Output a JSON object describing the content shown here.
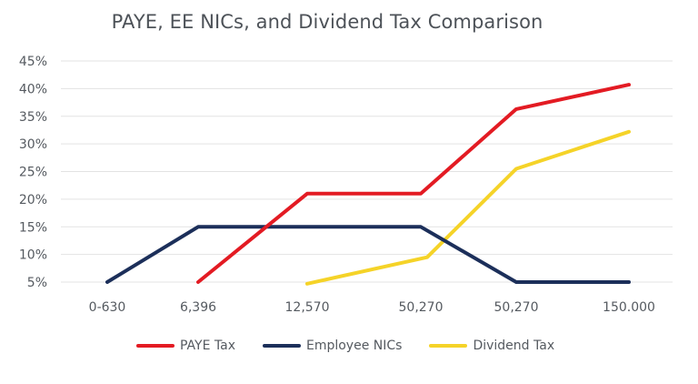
{
  "chart_data": {
    "type": "line",
    "title": "PAYE, EE NICs, and Dividend Tax Comparison",
    "xlabel": "",
    "ylabel": "",
    "categories": [
      "0-630",
      "6,396",
      "12,570",
      "50,270",
      "50,270",
      "150.000"
    ],
    "y_ticks": [
      "5%",
      "10%",
      "15%",
      "20%",
      "25%",
      "30%",
      "35%",
      "40%",
      "45%"
    ],
    "ylim": [
      5,
      45
    ],
    "grid": true,
    "legend_position": "bottom",
    "series": [
      {
        "name": "PAYE Tax",
        "color": "#e31b23",
        "values": [
          null,
          5,
          21,
          21,
          36.3,
          40.7
        ]
      },
      {
        "name": "Employee NICs",
        "color": "#1c2f5a",
        "values": [
          5,
          15,
          15,
          15,
          5,
          5
        ]
      },
      {
        "name": "Dividend Tax",
        "color": "#f5d328",
        "values": [
          null,
          null,
          4.7,
          9.5,
          25.5,
          32.2
        ]
      }
    ]
  },
  "legend": [
    {
      "label": "PAYE Tax",
      "color": "#e31b23"
    },
    {
      "label": "Employee NICs",
      "color": "#1c2f5a"
    },
    {
      "label": "Dividend Tax",
      "color": "#f5d328"
    }
  ]
}
